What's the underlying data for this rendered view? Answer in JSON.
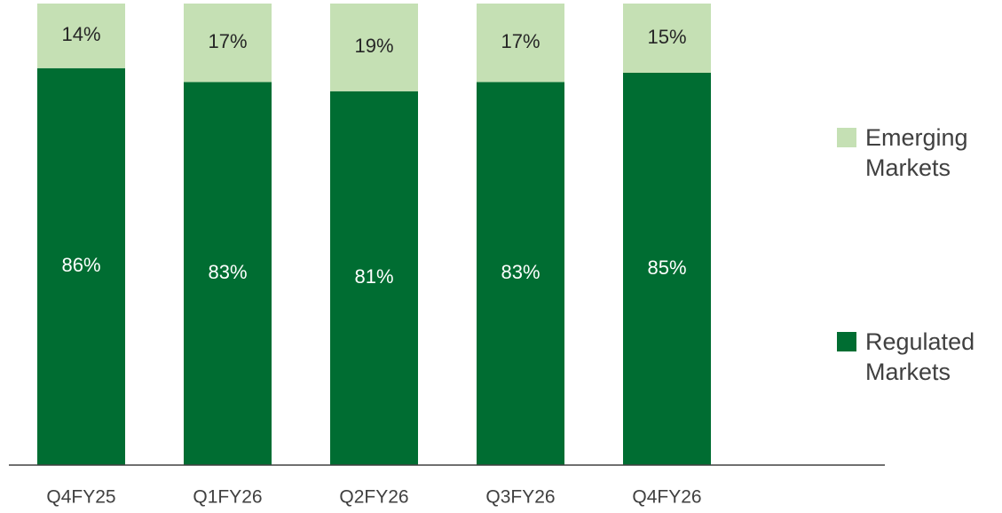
{
  "chart_data": {
    "type": "stacked_bar",
    "categories": [
      "Q4FY25",
      "Q1FY26",
      "Q2FY26",
      "Q3FY26",
      "Q4FY26"
    ],
    "series": [
      {
        "name": "Regulated Markets",
        "color": "#006d32",
        "values": [
          86,
          83,
          81,
          83,
          85
        ],
        "value_labels": [
          "86%",
          "83%",
          "81%",
          "83%",
          "85%"
        ]
      },
      {
        "name": "Emerging Markets",
        "color": "#c5e0b4",
        "values": [
          14,
          17,
          19,
          17,
          15
        ],
        "value_labels": [
          "14%",
          "17%",
          "19%",
          "17%",
          "15%"
        ]
      }
    ],
    "legend": "right"
  }
}
